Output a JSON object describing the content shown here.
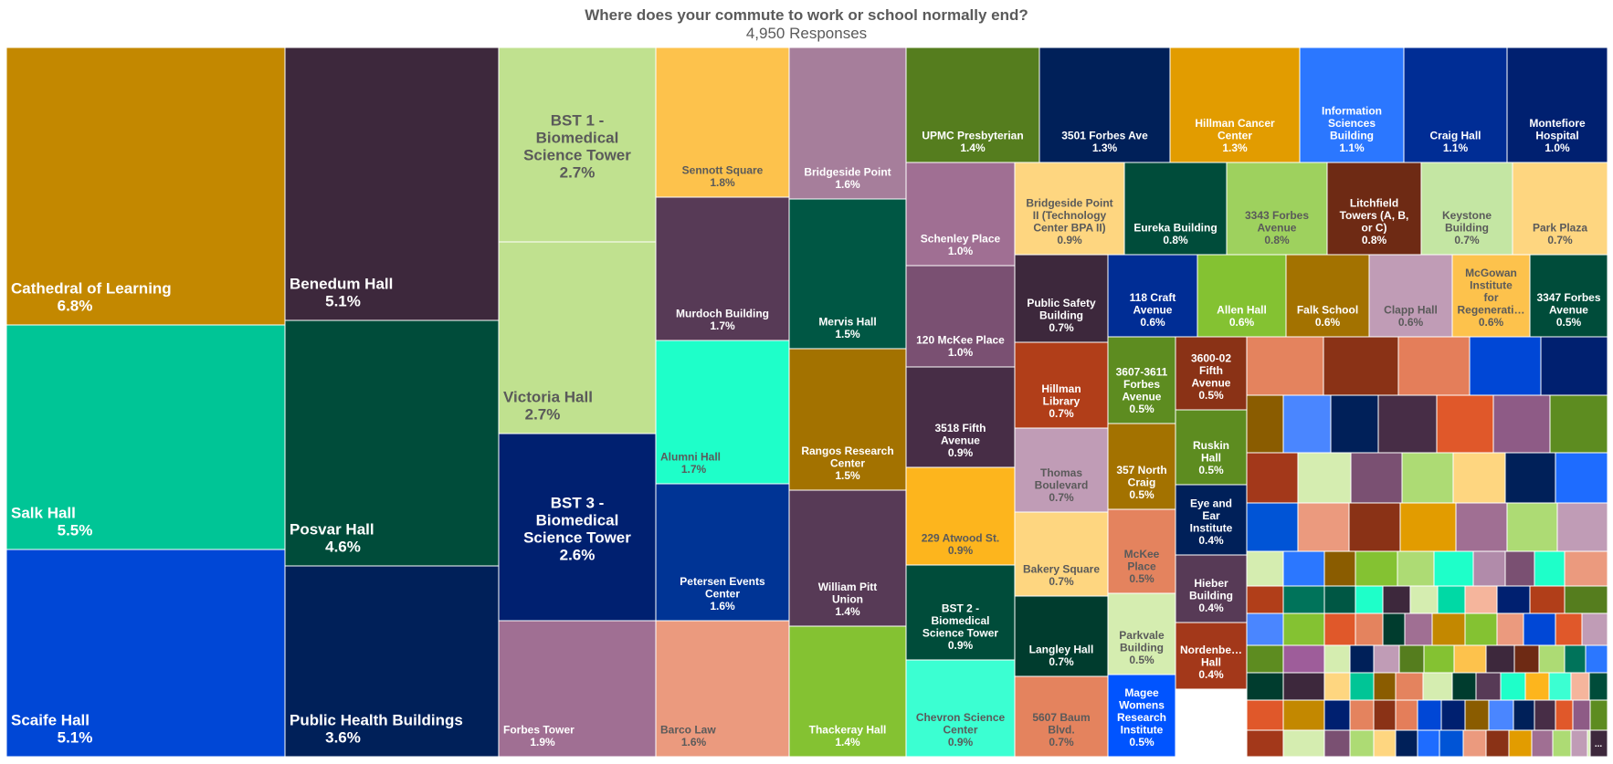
{
  "chart_data": {
    "type": "treemap",
    "title": "Where does your commute to work or school normally end?",
    "subtitle": "4,950 Responses",
    "items": [
      {
        "name": "Cathedral of Learning",
        "percent": "6.8%",
        "color": "#C38800",
        "text": "#ffffff"
      },
      {
        "name": "Salk Hall",
        "percent": "5.5%",
        "color": "#00C596",
        "text": "#ffffff"
      },
      {
        "name": "Scaife Hall",
        "percent": "5.1%",
        "color": "#0047D6",
        "text": "#ffffff"
      },
      {
        "name": "Benedum Hall",
        "percent": "5.1%",
        "color": "#3D283C",
        "text": "#ffffff"
      },
      {
        "name": "Posvar Hall",
        "percent": "4.6%",
        "color": "#004C3A",
        "text": "#ffffff"
      },
      {
        "name": "Public Health Buildings",
        "percent": "3.6%",
        "color": "#002059",
        "text": "#ffffff"
      },
      {
        "name": "BST 1 - Biomedical Science Tower",
        "percent": "2.7%",
        "color": "#C0E18F",
        "text": "#5a5a5a"
      },
      {
        "name": "Victoria Hall",
        "percent": "2.7%",
        "color": "#C0E18F",
        "text": "#5a5a5a"
      },
      {
        "name": "BST 3 - Biomedical Science Tower",
        "percent": "2.6%",
        "color": "#002070",
        "text": "#ffffff"
      },
      {
        "name": "Forbes Tower",
        "percent": "1.9%",
        "color": "#A06F93",
        "text": "#ffffff"
      },
      {
        "name": "Sennott Square",
        "percent": "1.8%",
        "color": "#FDC24C",
        "text": "#5a5a5a"
      },
      {
        "name": "Murdoch Building",
        "percent": "1.7%",
        "color": "#573A56",
        "text": "#ffffff"
      },
      {
        "name": "Alumni Hall",
        "percent": "1.7%",
        "color": "#1EFFC9",
        "text": "#5a5a5a"
      },
      {
        "name": "Petersen Events Center",
        "percent": "1.6%",
        "color": "#003495",
        "text": "#ffffff"
      },
      {
        "name": "Barco Law",
        "percent": "1.6%",
        "color": "#EB9A7E",
        "text": "#5a5a5a"
      },
      {
        "name": "Bridgeside Point",
        "percent": "1.6%",
        "color": "#A67E9B",
        "text": "#ffffff"
      },
      {
        "name": "Mervis Hall",
        "percent": "1.5%",
        "color": "#005744",
        "text": "#ffffff"
      },
      {
        "name": "Rangos Research Center",
        "percent": "1.5%",
        "color": "#A37200",
        "text": "#ffffff"
      },
      {
        "name": "William Pitt Union",
        "percent": "1.4%",
        "color": "#573A56",
        "text": "#ffffff"
      },
      {
        "name": "Thackeray Hall",
        "percent": "1.4%",
        "color": "#84C232",
        "text": "#ffffff"
      },
      {
        "name": "UPMC Presbyterian",
        "percent": "1.4%",
        "color": "#557D1E",
        "text": "#ffffff"
      },
      {
        "name": "3501 Forbes Ave",
        "percent": "1.3%",
        "color": "#002059",
        "text": "#ffffff"
      },
      {
        "name": "Hillman Cancer Center",
        "percent": "1.3%",
        "color": "#E29C00",
        "text": "#ffffff"
      },
      {
        "name": "Information Sciences Building",
        "percent": "1.1%",
        "color": "#2B77FF",
        "text": "#ffffff"
      },
      {
        "name": "Craig Hall",
        "percent": "1.1%",
        "color": "#002D95",
        "text": "#ffffff"
      },
      {
        "name": "Montefiore Hospital",
        "percent": "1.0%",
        "color": "#002070",
        "text": "#ffffff"
      },
      {
        "name": "Schenley Place",
        "percent": "1.0%",
        "color": "#A06F93",
        "text": "#ffffff"
      },
      {
        "name": "120 McKee Place",
        "percent": "1.0%",
        "color": "#7A5072",
        "text": "#ffffff"
      },
      {
        "name": "3518 Fifth Avenue",
        "percent": "0.9%",
        "color": "#472D46",
        "text": "#ffffff"
      },
      {
        "name": "229 Atwood St.",
        "percent": "0.9%",
        "color": "#FDB51D",
        "text": "#5a5a5a"
      },
      {
        "name": "BST 2 - Biomedical Science Tower",
        "percent": "0.9%",
        "color": "#004C3A",
        "text": "#ffffff"
      },
      {
        "name": "Chevron Science Center",
        "percent": "0.9%",
        "color": "#3BFFD2",
        "text": "#5a5a5a"
      },
      {
        "name": "Bridgeside Point II (Technology Center BPA II)",
        "percent": "0.9%",
        "color": "#FED680",
        "text": "#5a5a5a"
      },
      {
        "name": "Eureka Building",
        "percent": "0.8%",
        "color": "#004C3A",
        "text": "#ffffff"
      },
      {
        "name": "3343 Forbes Avenue",
        "percent": "0.8%",
        "color": "#9ED15E",
        "text": "#5a5a5a"
      },
      {
        "name": "Litchfield Towers (A, B, or C)",
        "percent": "0.8%",
        "color": "#6E2A14",
        "text": "#ffffff"
      },
      {
        "name": "Keystone Building",
        "percent": "0.7%",
        "color": "#C4E6A3",
        "text": "#5a5a5a"
      },
      {
        "name": "Park Plaza",
        "percent": "0.7%",
        "color": "#FED680",
        "text": "#5a5a5a"
      },
      {
        "name": "Public Safety Building",
        "percent": "0.7%",
        "color": "#3D283C",
        "text": "#ffffff"
      },
      {
        "name": "118 Craft Avenue",
        "percent": "0.6%",
        "color": "#002D95",
        "text": "#ffffff"
      },
      {
        "name": "Allen Hall",
        "percent": "0.6%",
        "color": "#84C232",
        "text": "#ffffff"
      },
      {
        "name": "Falk School",
        "percent": "0.6%",
        "color": "#A37200",
        "text": "#ffffff"
      },
      {
        "name": "Clapp Hall",
        "percent": "0.6%",
        "color": "#C09CB6",
        "text": "#5a5a5a"
      },
      {
        "name": "McGowan Institute for Regenerati…",
        "percent": "0.6%",
        "color": "#FDC24C",
        "text": "#5a5a5a"
      },
      {
        "name": "3347 Forbes Avenue",
        "percent": "0.5%",
        "color": "#004C3A",
        "text": "#ffffff"
      },
      {
        "name": "Hillman Library",
        "percent": "0.7%",
        "color": "#B13E19",
        "text": "#ffffff"
      },
      {
        "name": "Thomas Boulevard",
        "percent": "0.7%",
        "color": "#C09CB6",
        "text": "#5a5a5a"
      },
      {
        "name": "Bakery Square",
        "percent": "0.7%",
        "color": "#FED680",
        "text": "#5a5a5a"
      },
      {
        "name": "Langley Hall",
        "percent": "0.7%",
        "color": "#003C2E",
        "text": "#ffffff"
      },
      {
        "name": "5607 Baum Blvd.",
        "percent": "0.7%",
        "color": "#E4835E",
        "text": "#5a5a5a"
      },
      {
        "name": "3607-3611 Forbes Avenue",
        "percent": "0.5%",
        "color": "#5D8C20",
        "text": "#ffffff"
      },
      {
        "name": "357 North Craig",
        "percent": "0.5%",
        "color": "#A37200",
        "text": "#ffffff"
      },
      {
        "name": "McKee Place",
        "percent": "0.5%",
        "color": "#E4835E",
        "text": "#5a5a5a"
      },
      {
        "name": "Parkvale Building",
        "percent": "0.5%",
        "color": "#D5EDB0",
        "text": "#5a5a5a"
      },
      {
        "name": "Magee Womens Research Institute",
        "percent": "0.5%",
        "color": "#0054FF",
        "text": "#ffffff"
      },
      {
        "name": "3600-02 Fifth Avenue",
        "percent": "0.5%",
        "color": "#8A3216",
        "text": "#ffffff"
      },
      {
        "name": "Ruskin Hall",
        "percent": "0.5%",
        "color": "#5D8C20",
        "text": "#ffffff"
      },
      {
        "name": "Eye and Ear Institute",
        "percent": "0.4%",
        "color": "#002059",
        "text": "#ffffff"
      },
      {
        "name": "Hieber Building",
        "percent": "0.4%",
        "color": "#573A56",
        "text": "#ffffff"
      },
      {
        "name": "Nordenbe… Hall",
        "percent": "0.4%",
        "color": "#A3381A",
        "text": "#ffffff"
      }
    ],
    "small_tile_colors": [
      "#E4835E",
      "#8A3216",
      "#E47E5A",
      "#0047D6",
      "#002070",
      "#8A5C00",
      "#4A86FF",
      "#002059",
      "#472D46",
      "#E0582A",
      "#8E5B86",
      "#5D8C20",
      "#A3381A",
      "#D5EDB0",
      "#7A5072",
      "#ADDB74",
      "#FED680",
      "#002059",
      "#1E6CFF",
      "#0054D6",
      "#EB9A7E",
      "#8A3216",
      "#E29C00",
      "#A06F93",
      "#ADDB74",
      "#C09CB6",
      "#D5EDB0",
      "#2B77FF",
      "#8A5C00",
      "#84C232",
      "#ADDB74",
      "#1EFFC9",
      "#B18BAA",
      "#7A5072",
      "#1EFFC9",
      "#EB9A7E",
      "#B13E19",
      "#00735A",
      "#005744",
      "#1EFFC9",
      "#3D283C",
      "#D5EDB0",
      "#00D9A5",
      "#F5B59C",
      "#002070",
      "#B13E19",
      "#557D1E",
      "#4A86FF",
      "#84C232",
      "#E0582A",
      "#E4835E",
      "#003C2E",
      "#A06F93",
      "#C38800",
      "#84C232",
      "#EB9A7E",
      "#0047D6",
      "#E0582A",
      "#C09CB6",
      "#5D8C20",
      "#9E5D9A",
      "#D5EDB0",
      "#002059",
      "#C09CB6",
      "#557D1E",
      "#84C232",
      "#FDC24C",
      "#3D283C",
      "#6E2A14",
      "#ADDB74",
      "#00735A",
      "#2B77FF",
      "#003C2E",
      "#3D283C",
      "#FED680",
      "#00C596",
      "#8A5C00",
      "#E4835E",
      "#D5EDB0",
      "#003C2E",
      "#573A56",
      "#1EFFC9",
      "#FDB51D",
      "#3BFFD2",
      "#F5B59C",
      "#004C3A",
      "#E0582A",
      "#C38800",
      "#002070"
    ],
    "overflow_label": "..."
  }
}
